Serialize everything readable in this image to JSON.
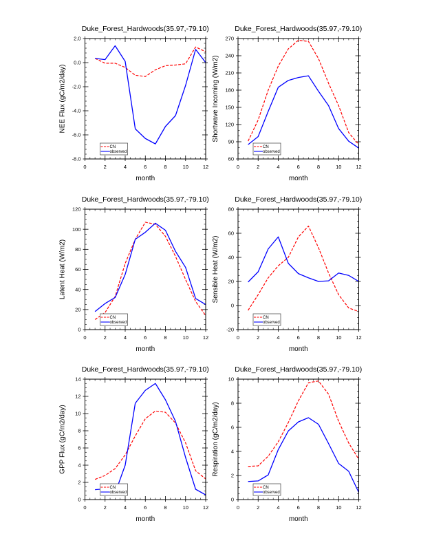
{
  "chart_data": [
    {
      "type": "line",
      "title": "Duke_Forest_Hardwoods(35.97,-79.10)",
      "xlabel": "month",
      "ylabel": "NEE Flux (gC/m2/day)",
      "xlim": [
        0,
        12
      ],
      "ylim": [
        -8,
        2
      ],
      "xticks": [
        0,
        2,
        4,
        6,
        8,
        10,
        12
      ],
      "yticks": [
        -8,
        -6,
        -4,
        -2,
        0,
        2
      ],
      "ytick_labels": [
        "-8.0",
        "-6.0",
        "-4.0",
        "-2.0",
        "0.0",
        "2.0"
      ],
      "grid": false,
      "legend_position": "bottom-left",
      "x": [
        1,
        2,
        3,
        4,
        5,
        6,
        7,
        8,
        9,
        10,
        11,
        12
      ],
      "series": [
        {
          "name": "CN",
          "color": "#ff0000",
          "style": "dashed",
          "values": [
            0.35,
            -0.05,
            -0.05,
            -0.4,
            -1.05,
            -1.15,
            -0.6,
            -0.25,
            -0.2,
            -0.1,
            1.3,
            0.9
          ]
        },
        {
          "name": "observed",
          "color": "#0000ff",
          "style": "solid",
          "values": [
            0.35,
            0.25,
            1.4,
            0.1,
            -5.5,
            -6.3,
            -6.75,
            -5.3,
            -4.4,
            -1.9,
            1.1,
            0.0
          ]
        }
      ]
    },
    {
      "type": "line",
      "title": "Duke_Forest_Hardwoods(35.97,-79.10)",
      "xlabel": "month",
      "ylabel": "Shortwave Incoming (W/m2)",
      "xlim": [
        0,
        12
      ],
      "ylim": [
        60,
        270
      ],
      "xticks": [
        0,
        2,
        4,
        6,
        8,
        10,
        12
      ],
      "yticks": [
        60,
        90,
        120,
        150,
        180,
        210,
        240,
        270
      ],
      "ytick_labels": [
        "60",
        "90",
        "120",
        "150",
        "180",
        "210",
        "240",
        "270"
      ],
      "grid": false,
      "legend_position": "bottom-left",
      "x": [
        1,
        2,
        3,
        4,
        5,
        6,
        7,
        8,
        9,
        10,
        11,
        12
      ],
      "series": [
        {
          "name": "CN",
          "color": "#ff0000",
          "style": "dashed",
          "values": [
            91,
            128,
            180,
            222,
            252,
            267,
            265,
            235,
            192,
            153,
            106,
            85
          ]
        },
        {
          "name": "observed",
          "color": "#0000ff",
          "style": "solid",
          "values": [
            85,
            99,
            143,
            185,
            197,
            202,
            205,
            178,
            153,
            113,
            91,
            79
          ]
        }
      ]
    },
    {
      "type": "line",
      "title": "Duke_Forest_Hardwoods(35.97,-79.10)",
      "xlabel": "month",
      "ylabel": "Latent Heat (W/m2)",
      "xlim": [
        0,
        12
      ],
      "ylim": [
        0,
        120
      ],
      "xticks": [
        0,
        2,
        4,
        6,
        8,
        10,
        12
      ],
      "yticks": [
        0,
        20,
        40,
        60,
        80,
        100,
        120
      ],
      "ytick_labels": [
        "0",
        "20",
        "40",
        "60",
        "80",
        "100",
        "120"
      ],
      "grid": false,
      "legend_position": "bottom-left",
      "x": [
        1,
        2,
        3,
        4,
        5,
        6,
        7,
        8,
        9,
        10,
        11,
        12
      ],
      "series": [
        {
          "name": "CN",
          "color": "#ff0000",
          "style": "dashed",
          "values": [
            10,
            17,
            33,
            66,
            90,
            107,
            105,
            93,
            73,
            50,
            28,
            14
          ]
        },
        {
          "name": "observed",
          "color": "#0000ff",
          "style": "solid",
          "values": [
            18,
            26,
            32,
            55,
            90,
            97,
            106,
            99,
            78,
            62,
            31,
            25
          ]
        }
      ]
    },
    {
      "type": "line",
      "title": "Duke_Forest_Hardwoods(35.97,-79.10)",
      "xlabel": "month",
      "ylabel": "Sensible Heat (W/m2)",
      "xlim": [
        0,
        12
      ],
      "ylim": [
        -20,
        80
      ],
      "xticks": [
        0,
        2,
        4,
        6,
        8,
        10,
        12
      ],
      "yticks": [
        -20,
        0,
        20,
        40,
        60,
        80
      ],
      "ytick_labels": [
        "-20",
        "0",
        "20",
        "40",
        "60",
        "80"
      ],
      "grid": false,
      "legend_position": "bottom-left",
      "x": [
        1,
        2,
        3,
        4,
        5,
        6,
        7,
        8,
        9,
        10,
        11,
        12
      ],
      "series": [
        {
          "name": "CN",
          "color": "#ff0000",
          "style": "dashed",
          "values": [
            -4,
            9,
            23,
            33,
            40,
            57,
            66,
            48,
            27,
            9,
            -2,
            -5
          ]
        },
        {
          "name": "observed",
          "color": "#0000ff",
          "style": "solid",
          "values": [
            19.5,
            28,
            47,
            57,
            35,
            26.5,
            23,
            20,
            20.5,
            27,
            25,
            20
          ]
        }
      ]
    },
    {
      "type": "line",
      "title": "Duke_Forest_Hardwoods(35.97,-79.10)",
      "xlabel": "month",
      "ylabel": "GPP Flux (gC/m2/day)",
      "xlim": [
        0,
        12
      ],
      "ylim": [
        0,
        14
      ],
      "xticks": [
        0,
        2,
        4,
        6,
        8,
        10,
        12
      ],
      "yticks": [
        0,
        2,
        4,
        6,
        8,
        10,
        12,
        14
      ],
      "ytick_labels": [
        "0",
        "2",
        "4",
        "6",
        "8",
        "10",
        "12",
        "14"
      ],
      "grid": false,
      "legend_position": "bottom-left",
      "x": [
        1,
        2,
        3,
        4,
        5,
        6,
        7,
        8,
        9,
        10,
        11,
        12
      ],
      "series": [
        {
          "name": "CN",
          "color": "#ff0000",
          "style": "dashed",
          "values": [
            2.35,
            2.8,
            3.6,
            5.2,
            7.4,
            9.4,
            10.3,
            10.15,
            8.9,
            6.6,
            3.35,
            2.4
          ]
        },
        {
          "name": "observed",
          "color": "#0000ff",
          "style": "solid",
          "values": [
            1.15,
            1.25,
            0.75,
            4.0,
            11.2,
            12.7,
            13.5,
            11.6,
            9.1,
            4.9,
            1.2,
            0.55
          ]
        }
      ]
    },
    {
      "type": "line",
      "title": "Duke_Forest_Hardwoods(35.97,-79.10)",
      "xlabel": "month",
      "ylabel": "Respiration (gC/m2/day)",
      "xlim": [
        0,
        12
      ],
      "ylim": [
        0,
        10
      ],
      "xticks": [
        0,
        2,
        4,
        6,
        8,
        10,
        12
      ],
      "yticks": [
        0,
        2,
        4,
        6,
        8,
        10
      ],
      "ytick_labels": [
        "0",
        "2",
        "4",
        "6",
        "8",
        "10"
      ],
      "grid": false,
      "legend_position": "bottom-left",
      "x": [
        1,
        2,
        3,
        4,
        5,
        6,
        7,
        8,
        9,
        10,
        11,
        12
      ],
      "series": [
        {
          "name": "CN",
          "color": "#ff0000",
          "style": "dashed",
          "values": [
            2.75,
            2.8,
            3.6,
            4.8,
            6.4,
            8.2,
            9.7,
            9.85,
            8.75,
            6.5,
            4.7,
            3.35
          ]
        },
        {
          "name": "observed",
          "color": "#0000ff",
          "style": "solid",
          "values": [
            1.5,
            1.55,
            2.05,
            4.15,
            5.7,
            6.45,
            6.8,
            6.25,
            4.65,
            3.0,
            2.35,
            0.6
          ]
        }
      ]
    }
  ]
}
